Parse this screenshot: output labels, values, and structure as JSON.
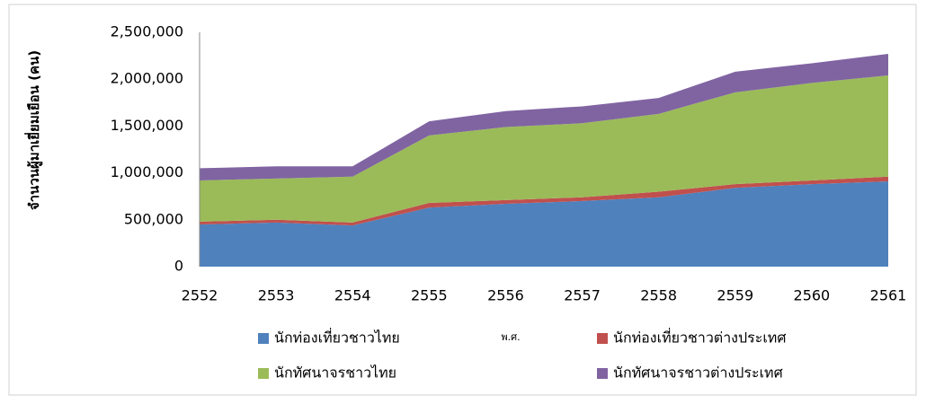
{
  "chart_data": {
    "type": "stacked_area",
    "y_label": "จำนวนผู้มาเยี่ยมเยือน (คน)",
    "x_label": "พ.ศ.",
    "categories": [
      "2552",
      "2553",
      "2554",
      "2555",
      "2556",
      "2557",
      "2558",
      "2559",
      "2560",
      "2561"
    ],
    "series": [
      {
        "name": "นักท่องเที่ยวชาวไทย",
        "color": "#4f81bd",
        "values": [
          450000,
          470000,
          440000,
          630000,
          670000,
          700000,
          740000,
          840000,
          880000,
          910000
        ]
      },
      {
        "name": "นักท่องเที่ยวชาวต่างประเทศ",
        "color": "#c0504d",
        "values": [
          30000,
          30000,
          30000,
          50000,
          40000,
          40000,
          60000,
          40000,
          40000,
          50000
        ]
      },
      {
        "name": "นักทัศนาจรชาวไทย",
        "color": "#9bbb59",
        "values": [
          440000,
          440000,
          490000,
          720000,
          780000,
          790000,
          830000,
          980000,
          1040000,
          1080000
        ]
      },
      {
        "name": "นักทัศนาจรชาวต่างประเทศ",
        "color": "#8064a2",
        "values": [
          130000,
          130000,
          110000,
          150000,
          170000,
          180000,
          170000,
          220000,
          210000,
          230000
        ]
      }
    ],
    "ylim": [
      0,
      2500000
    ],
    "yticks": [
      0,
      {
        "value": 500000,
        "label": "500,000"
      },
      {
        "value": 1000000,
        "label": "1,000,000"
      },
      {
        "value": 1500000,
        "label": "1,500,000"
      },
      {
        "value": 2000000,
        "label": "2,000,000"
      },
      {
        "value": 2500000,
        "label": "2,500,000"
      }
    ],
    "grid": false,
    "legend": "bottom"
  }
}
